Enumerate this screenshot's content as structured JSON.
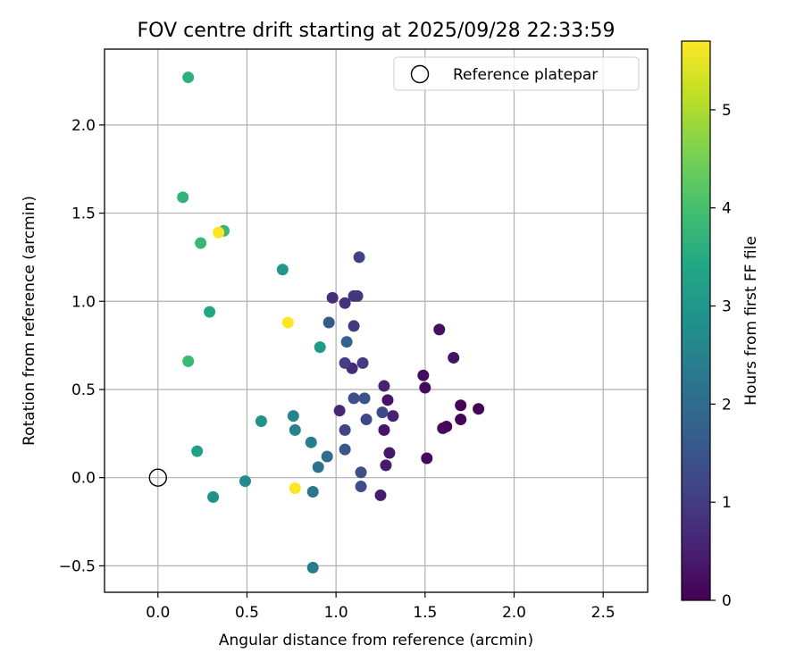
{
  "chart_data": {
    "type": "scatter",
    "title": "FOV centre drift starting at 2025/09/28 22:33:59",
    "xlabel": "Angular distance from reference (arcmin)",
    "ylabel": "Rotation from reference (arcmin)",
    "xlim": [
      -0.3,
      2.75
    ],
    "ylim": [
      -0.65,
      2.43
    ],
    "xticks": [
      0.0,
      0.5,
      1.0,
      1.5,
      2.0,
      2.5
    ],
    "xtick_labels": [
      "0.0",
      "0.5",
      "1.0",
      "1.5",
      "2.0",
      "2.5"
    ],
    "yticks": [
      -0.5,
      0.0,
      0.5,
      1.0,
      1.5,
      2.0
    ],
    "ytick_labels": [
      "−0.5",
      "0.0",
      "0.5",
      "1.0",
      "1.5",
      "2.0"
    ],
    "grid": true,
    "legend": {
      "position": "upper-right",
      "entries": [
        "Reference platepar"
      ]
    },
    "reference_point": {
      "x": 0.0,
      "y": 0.0,
      "label": "Reference platepar"
    },
    "colorbar": {
      "label": "Hours from first FF file",
      "colormap": "viridis",
      "range": [
        0,
        5.7
      ],
      "ticks": [
        0,
        1,
        2,
        3,
        4,
        5
      ],
      "tick_labels": [
        "0",
        "1",
        "2",
        "3",
        "4",
        "5"
      ]
    },
    "points": [
      {
        "x": 1.8,
        "y": 0.39,
        "h": 0.02
      },
      {
        "x": 1.7,
        "y": 0.41,
        "h": 0.05
      },
      {
        "x": 1.7,
        "y": 0.33,
        "h": 0.08
      },
      {
        "x": 1.62,
        "y": 0.29,
        "h": 0.1
      },
      {
        "x": 1.6,
        "y": 0.28,
        "h": 0.12
      },
      {
        "x": 1.51,
        "y": 0.11,
        "h": 0.15
      },
      {
        "x": 1.5,
        "y": 0.51,
        "h": 0.18
      },
      {
        "x": 1.49,
        "y": 0.58,
        "h": 0.2
      },
      {
        "x": 1.58,
        "y": 0.84,
        "h": 0.25
      },
      {
        "x": 1.66,
        "y": 0.68,
        "h": 0.28
      },
      {
        "x": 1.29,
        "y": 0.44,
        "h": 0.3
      },
      {
        "x": 1.27,
        "y": 0.27,
        "h": 0.32
      },
      {
        "x": 1.3,
        "y": 0.14,
        "h": 0.35
      },
      {
        "x": 1.28,
        "y": 0.07,
        "h": 0.4
      },
      {
        "x": 1.25,
        "y": -0.1,
        "h": 0.45
      },
      {
        "x": 1.32,
        "y": 0.35,
        "h": 0.5
      },
      {
        "x": 1.27,
        "y": 0.52,
        "h": 0.55
      },
      {
        "x": 1.02,
        "y": 0.38,
        "h": 0.6
      },
      {
        "x": 1.09,
        "y": 0.62,
        "h": 0.7
      },
      {
        "x": 0.98,
        "y": 1.02,
        "h": 0.75
      },
      {
        "x": 1.05,
        "y": 0.99,
        "h": 0.8
      },
      {
        "x": 1.1,
        "y": 1.03,
        "h": 0.85
      },
      {
        "x": 1.12,
        "y": 1.03,
        "h": 0.9
      },
      {
        "x": 1.1,
        "y": 0.86,
        "h": 0.95
      },
      {
        "x": 1.15,
        "y": 0.65,
        "h": 1.0
      },
      {
        "x": 1.05,
        "y": 0.65,
        "h": 1.05
      },
      {
        "x": 1.13,
        "y": 1.25,
        "h": 1.1
      },
      {
        "x": 1.05,
        "y": 0.27,
        "h": 1.15
      },
      {
        "x": 1.17,
        "y": 0.33,
        "h": 1.2
      },
      {
        "x": 1.26,
        "y": 0.37,
        "h": 1.25
      },
      {
        "x": 1.14,
        "y": -0.05,
        "h": 1.3
      },
      {
        "x": 1.14,
        "y": 0.03,
        "h": 1.35
      },
      {
        "x": 1.1,
        "y": 0.45,
        "h": 1.4
      },
      {
        "x": 1.16,
        "y": 0.45,
        "h": 1.45
      },
      {
        "x": 1.05,
        "y": 0.16,
        "h": 1.55
      },
      {
        "x": 0.96,
        "y": 0.88,
        "h": 1.65
      },
      {
        "x": 1.06,
        "y": 0.77,
        "h": 1.75
      },
      {
        "x": 0.95,
        "y": 0.12,
        "h": 2.05
      },
      {
        "x": 0.9,
        "y": 0.06,
        "h": 2.15
      },
      {
        "x": 0.87,
        "y": -0.08,
        "h": 2.25
      },
      {
        "x": 0.87,
        "y": -0.51,
        "h": 2.35
      },
      {
        "x": 0.86,
        "y": 0.2,
        "h": 2.4
      },
      {
        "x": 0.77,
        "y": 0.27,
        "h": 2.5
      },
      {
        "x": 0.76,
        "y": 0.35,
        "h": 2.55
      },
      {
        "x": 0.49,
        "y": -0.02,
        "h": 2.7
      },
      {
        "x": 0.31,
        "y": -0.11,
        "h": 2.85
      },
      {
        "x": 0.58,
        "y": 0.32,
        "h": 2.9
      },
      {
        "x": 0.7,
        "y": 1.18,
        "h": 3.0
      },
      {
        "x": 0.91,
        "y": 0.74,
        "h": 3.1
      },
      {
        "x": 0.22,
        "y": 0.15,
        "h": 3.2
      },
      {
        "x": 0.29,
        "y": 0.94,
        "h": 3.4
      },
      {
        "x": 0.17,
        "y": 2.27,
        "h": 3.6
      },
      {
        "x": 0.14,
        "y": 1.59,
        "h": 3.7
      },
      {
        "x": 0.24,
        "y": 1.33,
        "h": 3.8
      },
      {
        "x": 0.37,
        "y": 1.4,
        "h": 3.8
      },
      {
        "x": 0.17,
        "y": 0.66,
        "h": 3.85
      },
      {
        "x": 0.34,
        "y": 1.39,
        "h": 5.7
      },
      {
        "x": 0.73,
        "y": 0.88,
        "h": 5.7
      },
      {
        "x": 0.77,
        "y": -0.06,
        "h": 5.7
      }
    ]
  }
}
